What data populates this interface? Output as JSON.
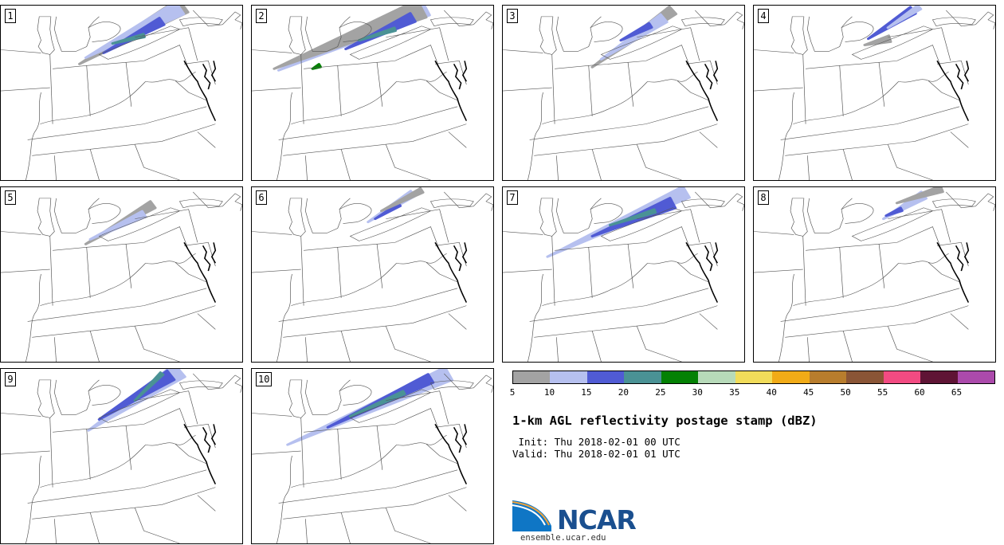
{
  "panels": [
    {
      "label": "1",
      "id": 1
    },
    {
      "label": "2",
      "id": 2
    },
    {
      "label": "3",
      "id": 3
    },
    {
      "label": "4",
      "id": 4
    },
    {
      "label": "5",
      "id": 5
    },
    {
      "label": "6",
      "id": 6
    },
    {
      "label": "7",
      "id": 7
    },
    {
      "label": "8",
      "id": 8
    },
    {
      "label": "9",
      "id": 9
    },
    {
      "label": "10",
      "id": 10
    }
  ],
  "colorbar": {
    "colors": [
      "#a3a3a3",
      "#b6c0ef",
      "#505bd4",
      "#4a9295",
      "#048104",
      "#b7dab9",
      "#f1dc5a",
      "#f1ab17",
      "#b87d2d",
      "#8a5536",
      "#f24b82",
      "#5f1435",
      "#ab4aab"
    ],
    "ticks": [
      "5",
      "10",
      "15",
      "20",
      "25",
      "30",
      "35",
      "40",
      "45",
      "50",
      "55",
      "60",
      "65"
    ]
  },
  "title": "1-km AGL reflectivity postage stamp (dBZ)",
  "init": " Init: Thu 2018-02-01 00 UTC",
  "valid": "Valid: Thu 2018-02-01 01 UTC",
  "logo": {
    "text": "NCAR",
    "url": "ensemble.ucar.edu"
  }
}
